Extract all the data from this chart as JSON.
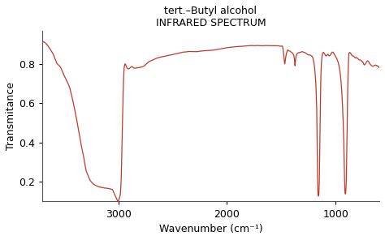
{
  "title_line1": "tert.–Butyl alcohol",
  "title_line2": "INFRARED SPECTRUM",
  "xlabel": "Wavenumber (cm⁻¹)",
  "ylabel": "Transmitance",
  "xlim": [
    3700,
    600
  ],
  "ylim": [
    0.1,
    0.97
  ],
  "line_color": "#c0392b",
  "line_width": 0.9,
  "background_color": "#ffffff",
  "keypoints": [
    [
      3700,
      0.915
    ],
    [
      3680,
      0.91
    ],
    [
      3650,
      0.895
    ],
    [
      3620,
      0.87
    ],
    [
      3590,
      0.84
    ],
    [
      3560,
      0.8
    ],
    [
      3540,
      0.79
    ],
    [
      3520,
      0.77
    ],
    [
      3500,
      0.745
    ],
    [
      3480,
      0.72
    ],
    [
      3450,
      0.685
    ],
    [
      3420,
      0.62
    ],
    [
      3390,
      0.54
    ],
    [
      3360,
      0.45
    ],
    [
      3330,
      0.36
    ],
    [
      3310,
      0.305
    ],
    [
      3300,
      0.27
    ],
    [
      3280,
      0.235
    ],
    [
      3260,
      0.21
    ],
    [
      3240,
      0.195
    ],
    [
      3220,
      0.185
    ],
    [
      3200,
      0.18
    ],
    [
      3180,
      0.175
    ],
    [
      3160,
      0.172
    ],
    [
      3140,
      0.17
    ],
    [
      3120,
      0.168
    ],
    [
      3100,
      0.167
    ],
    [
      3080,
      0.165
    ],
    [
      3060,
      0.162
    ],
    [
      3050,
      0.158
    ],
    [
      3040,
      0.145
    ],
    [
      3030,
      0.133
    ],
    [
      3020,
      0.12
    ],
    [
      3010,
      0.108
    ],
    [
      3000,
      0.1
    ],
    [
      2995,
      0.105
    ],
    [
      2990,
      0.115
    ],
    [
      2985,
      0.125
    ],
    [
      2980,
      0.14
    ],
    [
      2975,
      0.185
    ],
    [
      2970,
      0.25
    ],
    [
      2965,
      0.37
    ],
    [
      2960,
      0.5
    ],
    [
      2955,
      0.64
    ],
    [
      2950,
      0.73
    ],
    [
      2945,
      0.78
    ],
    [
      2940,
      0.795
    ],
    [
      2935,
      0.8
    ],
    [
      2930,
      0.795
    ],
    [
      2920,
      0.78
    ],
    [
      2910,
      0.775
    ],
    [
      2900,
      0.775
    ],
    [
      2890,
      0.78
    ],
    [
      2880,
      0.785
    ],
    [
      2870,
      0.785
    ],
    [
      2860,
      0.78
    ],
    [
      2840,
      0.778
    ],
    [
      2820,
      0.78
    ],
    [
      2800,
      0.782
    ],
    [
      2780,
      0.785
    ],
    [
      2760,
      0.79
    ],
    [
      2740,
      0.8
    ],
    [
      2720,
      0.81
    ],
    [
      2700,
      0.815
    ],
    [
      2680,
      0.82
    ],
    [
      2660,
      0.825
    ],
    [
      2640,
      0.83
    ],
    [
      2620,
      0.833
    ],
    [
      2600,
      0.836
    ],
    [
      2580,
      0.838
    ],
    [
      2560,
      0.84
    ],
    [
      2540,
      0.843
    ],
    [
      2520,
      0.845
    ],
    [
      2500,
      0.847
    ],
    [
      2480,
      0.85
    ],
    [
      2460,
      0.852
    ],
    [
      2440,
      0.855
    ],
    [
      2420,
      0.857
    ],
    [
      2400,
      0.86
    ],
    [
      2380,
      0.86
    ],
    [
      2360,
      0.862
    ],
    [
      2340,
      0.863
    ],
    [
      2320,
      0.862
    ],
    [
      2300,
      0.862
    ],
    [
      2280,
      0.862
    ],
    [
      2260,
      0.863
    ],
    [
      2240,
      0.865
    ],
    [
      2220,
      0.866
    ],
    [
      2200,
      0.867
    ],
    [
      2180,
      0.867
    ],
    [
      2160,
      0.868
    ],
    [
      2140,
      0.869
    ],
    [
      2120,
      0.87
    ],
    [
      2100,
      0.872
    ],
    [
      2080,
      0.874
    ],
    [
      2060,
      0.876
    ],
    [
      2040,
      0.878
    ],
    [
      2020,
      0.88
    ],
    [
      2000,
      0.882
    ],
    [
      1980,
      0.884
    ],
    [
      1960,
      0.885
    ],
    [
      1940,
      0.886
    ],
    [
      1920,
      0.887
    ],
    [
      1900,
      0.888
    ],
    [
      1880,
      0.889
    ],
    [
      1860,
      0.889
    ],
    [
      1840,
      0.89
    ],
    [
      1820,
      0.891
    ],
    [
      1800,
      0.892
    ],
    [
      1780,
      0.893
    ],
    [
      1760,
      0.893
    ],
    [
      1740,
      0.892
    ],
    [
      1720,
      0.893
    ],
    [
      1700,
      0.893
    ],
    [
      1680,
      0.892
    ],
    [
      1660,
      0.892
    ],
    [
      1640,
      0.893
    ],
    [
      1620,
      0.892
    ],
    [
      1600,
      0.892
    ],
    [
      1580,
      0.892
    ],
    [
      1560,
      0.892
    ],
    [
      1540,
      0.892
    ],
    [
      1520,
      0.891
    ],
    [
      1500,
      0.89
    ],
    [
      1490,
      0.888
    ],
    [
      1485,
      0.875
    ],
    [
      1480,
      0.85
    ],
    [
      1475,
      0.825
    ],
    [
      1470,
      0.8
    ],
    [
      1465,
      0.815
    ],
    [
      1460,
      0.835
    ],
    [
      1455,
      0.85
    ],
    [
      1450,
      0.86
    ],
    [
      1445,
      0.868
    ],
    [
      1440,
      0.87
    ],
    [
      1435,
      0.868
    ],
    [
      1430,
      0.866
    ],
    [
      1425,
      0.865
    ],
    [
      1420,
      0.864
    ],
    [
      1415,
      0.862
    ],
    [
      1410,
      0.86
    ],
    [
      1405,
      0.857
    ],
    [
      1400,
      0.855
    ],
    [
      1395,
      0.852
    ],
    [
      1390,
      0.848
    ],
    [
      1385,
      0.84
    ],
    [
      1382,
      0.83
    ],
    [
      1378,
      0.81
    ],
    [
      1375,
      0.79
    ],
    [
      1372,
      0.81
    ],
    [
      1370,
      0.82
    ],
    [
      1368,
      0.83
    ],
    [
      1365,
      0.84
    ],
    [
      1360,
      0.848
    ],
    [
      1355,
      0.852
    ],
    [
      1350,
      0.855
    ],
    [
      1340,
      0.857
    ],
    [
      1330,
      0.858
    ],
    [
      1320,
      0.86
    ],
    [
      1310,
      0.862
    ],
    [
      1300,
      0.86
    ],
    [
      1290,
      0.858
    ],
    [
      1280,
      0.856
    ],
    [
      1270,
      0.852
    ],
    [
      1260,
      0.848
    ],
    [
      1250,
      0.845
    ],
    [
      1240,
      0.845
    ],
    [
      1230,
      0.843
    ],
    [
      1220,
      0.838
    ],
    [
      1210,
      0.828
    ],
    [
      1205,
      0.815
    ],
    [
      1200,
      0.8
    ],
    [
      1195,
      0.78
    ],
    [
      1190,
      0.75
    ],
    [
      1185,
      0.71
    ],
    [
      1180,
      0.65
    ],
    [
      1175,
      0.55
    ],
    [
      1172,
      0.45
    ],
    [
      1170,
      0.34
    ],
    [
      1168,
      0.23
    ],
    [
      1166,
      0.17
    ],
    [
      1164,
      0.14
    ],
    [
      1162,
      0.13
    ],
    [
      1160,
      0.128
    ],
    [
      1158,
      0.13
    ],
    [
      1156,
      0.14
    ],
    [
      1154,
      0.16
    ],
    [
      1152,
      0.2
    ],
    [
      1150,
      0.26
    ],
    [
      1148,
      0.34
    ],
    [
      1145,
      0.46
    ],
    [
      1142,
      0.58
    ],
    [
      1140,
      0.66
    ],
    [
      1138,
      0.72
    ],
    [
      1135,
      0.775
    ],
    [
      1130,
      0.82
    ],
    [
      1125,
      0.845
    ],
    [
      1120,
      0.855
    ],
    [
      1115,
      0.858
    ],
    [
      1110,
      0.857
    ],
    [
      1105,
      0.852
    ],
    [
      1100,
      0.848
    ],
    [
      1095,
      0.843
    ],
    [
      1090,
      0.84
    ],
    [
      1085,
      0.842
    ],
    [
      1080,
      0.845
    ],
    [
      1075,
      0.848
    ],
    [
      1070,
      0.847
    ],
    [
      1065,
      0.843
    ],
    [
      1060,
      0.84
    ],
    [
      1055,
      0.842
    ],
    [
      1050,
      0.845
    ],
    [
      1045,
      0.85
    ],
    [
      1040,
      0.855
    ],
    [
      1035,
      0.858
    ],
    [
      1030,
      0.86
    ],
    [
      1025,
      0.858
    ],
    [
      1020,
      0.855
    ],
    [
      1015,
      0.85
    ],
    [
      1010,
      0.845
    ],
    [
      1005,
      0.84
    ],
    [
      1000,
      0.835
    ],
    [
      995,
      0.83
    ],
    [
      990,
      0.825
    ],
    [
      985,
      0.818
    ],
    [
      980,
      0.81
    ],
    [
      975,
      0.8
    ],
    [
      970,
      0.788
    ],
    [
      965,
      0.772
    ],
    [
      960,
      0.752
    ],
    [
      955,
      0.726
    ],
    [
      950,
      0.695
    ],
    [
      945,
      0.655
    ],
    [
      940,
      0.605
    ],
    [
      935,
      0.54
    ],
    [
      930,
      0.46
    ],
    [
      925,
      0.36
    ],
    [
      922,
      0.28
    ],
    [
      920,
      0.22
    ],
    [
      918,
      0.175
    ],
    [
      916,
      0.15
    ],
    [
      914,
      0.14
    ],
    [
      912,
      0.138
    ],
    [
      910,
      0.14
    ],
    [
      908,
      0.155
    ],
    [
      905,
      0.19
    ],
    [
      902,
      0.25
    ],
    [
      899,
      0.34
    ],
    [
      896,
      0.46
    ],
    [
      893,
      0.59
    ],
    [
      890,
      0.69
    ],
    [
      887,
      0.76
    ],
    [
      884,
      0.81
    ],
    [
      882,
      0.835
    ],
    [
      880,
      0.85
    ],
    [
      878,
      0.855
    ],
    [
      875,
      0.858
    ],
    [
      870,
      0.857
    ],
    [
      865,
      0.855
    ],
    [
      860,
      0.85
    ],
    [
      855,
      0.845
    ],
    [
      850,
      0.842
    ],
    [
      845,
      0.84
    ],
    [
      840,
      0.84
    ],
    [
      835,
      0.838
    ],
    [
      830,
      0.835
    ],
    [
      825,
      0.832
    ],
    [
      820,
      0.83
    ],
    [
      815,
      0.83
    ],
    [
      810,
      0.832
    ],
    [
      805,
      0.83
    ],
    [
      800,
      0.828
    ],
    [
      795,
      0.825
    ],
    [
      790,
      0.822
    ],
    [
      785,
      0.82
    ],
    [
      780,
      0.82
    ],
    [
      775,
      0.82
    ],
    [
      770,
      0.818
    ],
    [
      765,
      0.815
    ],
    [
      760,
      0.812
    ],
    [
      755,
      0.81
    ],
    [
      750,
      0.808
    ],
    [
      748,
      0.805
    ],
    [
      745,
      0.8
    ],
    [
      740,
      0.795
    ],
    [
      735,
      0.795
    ],
    [
      730,
      0.798
    ],
    [
      725,
      0.802
    ],
    [
      720,
      0.808
    ],
    [
      715,
      0.812
    ],
    [
      710,
      0.815
    ],
    [
      705,
      0.815
    ],
    [
      700,
      0.812
    ],
    [
      695,
      0.808
    ],
    [
      690,
      0.802
    ],
    [
      685,
      0.798
    ],
    [
      680,
      0.795
    ],
    [
      675,
      0.793
    ],
    [
      670,
      0.79
    ],
    [
      665,
      0.788
    ],
    [
      660,
      0.788
    ],
    [
      655,
      0.788
    ],
    [
      650,
      0.79
    ],
    [
      645,
      0.792
    ],
    [
      640,
      0.793
    ],
    [
      635,
      0.793
    ],
    [
      630,
      0.793
    ],
    [
      625,
      0.79
    ],
    [
      620,
      0.79
    ],
    [
      615,
      0.788
    ],
    [
      610,
      0.785
    ],
    [
      605,
      0.783
    ],
    [
      600,
      0.78
    ]
  ]
}
